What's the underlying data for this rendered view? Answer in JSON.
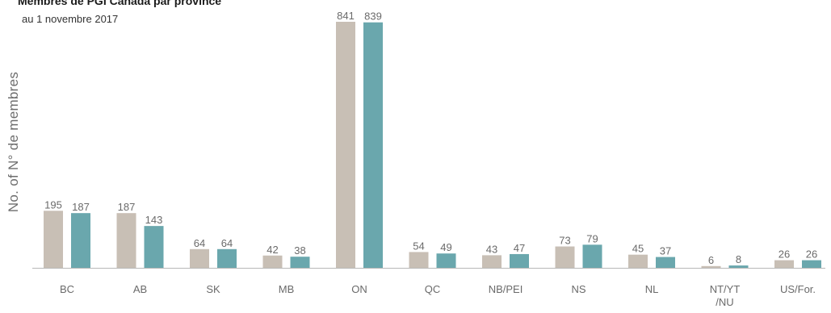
{
  "chart_data": {
    "type": "bar",
    "title": "Membres de PGI Canada par province",
    "subtitle": "au 1 novembre 2017",
    "ylabel": "No. of N° de membres",
    "xlabel": "",
    "categories": [
      "BC",
      "AB",
      "SK",
      "MB",
      "ON",
      "QC",
      "NB/PEI",
      "NS",
      "NL",
      "NT/YT\n/NU",
      "US/For."
    ],
    "series": [
      {
        "values": [
          195,
          187,
          64,
          42,
          841,
          54,
          43,
          73,
          45,
          6,
          26
        ]
      },
      {
        "values": [
          187,
          143,
          64,
          38,
          839,
          49,
          47,
          79,
          37,
          8,
          26
        ]
      }
    ],
    "series_colors": [
      "#c8bfb5",
      "#6aa7ad"
    ],
    "ylim": [
      0,
      841
    ],
    "grid": false,
    "legend": "none"
  }
}
